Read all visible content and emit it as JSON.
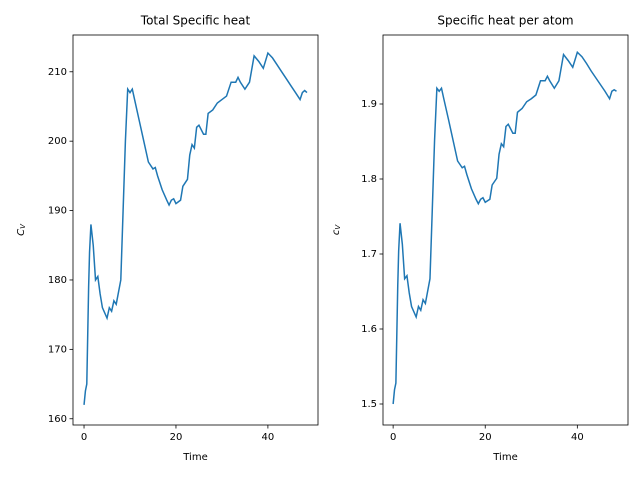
{
  "chart_data": [
    {
      "type": "line",
      "title": "Total Specific heat",
      "xlabel": "Time",
      "ylabel": "C",
      "ylabel_sub": "V",
      "xlim": [
        -2.4,
        50.9
      ],
      "ylim": [
        159.1,
        215.3
      ],
      "xticks": [
        0,
        20,
        40
      ],
      "yticks": [
        160,
        170,
        180,
        190,
        200,
        210
      ],
      "x": [
        0,
        0.3,
        0.6,
        1,
        1.2,
        1.5,
        2,
        2.5,
        3,
        3.5,
        4,
        5,
        5.5,
        6,
        6.5,
        7,
        8,
        8.5,
        9,
        9.5,
        10,
        10.5,
        11,
        12,
        13,
        14,
        15,
        15.5,
        16,
        17,
        18,
        18.5,
        19,
        19.5,
        20,
        21,
        21.5,
        22.5,
        23,
        23.5,
        24,
        24.5,
        25,
        26,
        26.5,
        27,
        28,
        29,
        30,
        31,
        32,
        33,
        33.5,
        34,
        35,
        36,
        37,
        38,
        39,
        40,
        41,
        42,
        43,
        44,
        45,
        46,
        47,
        47.5,
        48,
        48.5
      ],
      "series": [
        {
          "color": "#1f77b4",
          "values": [
            162,
            164,
            165,
            179,
            184,
            188,
            185,
            180,
            180.5,
            178,
            176,
            174.5,
            176,
            175.5,
            177,
            176.5,
            180,
            190,
            200,
            207.5,
            207,
            207.5,
            206,
            203,
            200,
            197,
            196,
            196.2,
            195,
            193,
            191.5,
            190.8,
            191.5,
            191.7,
            191,
            191.5,
            193.5,
            194.5,
            198,
            199.5,
            199,
            202,
            202.3,
            201,
            201,
            204,
            204.5,
            205.5,
            206,
            206.5,
            208.5,
            208.5,
            209.2,
            208.5,
            207.5,
            208.5,
            212.3,
            211.5,
            210.5,
            212.7,
            212,
            211,
            210,
            209,
            208,
            207,
            206,
            207,
            207.3,
            207
          ]
        }
      ]
    },
    {
      "type": "line",
      "title": "Specific heat per atom",
      "xlabel": "Time",
      "ylabel": "c",
      "ylabel_sub": "V",
      "xlim": [
        -2.2,
        51
      ],
      "ylim": [
        1.472,
        1.992
      ],
      "xticks": [
        0,
        20,
        40
      ],
      "yticks": [
        1.5,
        1.6,
        1.7,
        1.8,
        1.9
      ],
      "x": [
        0,
        0.3,
        0.6,
        1,
        1.2,
        1.5,
        2,
        2.5,
        3,
        3.5,
        4,
        5,
        5.5,
        6,
        6.5,
        7,
        8,
        8.5,
        9,
        9.5,
        10,
        10.5,
        11,
        12,
        13,
        14,
        15,
        15.5,
        16,
        17,
        18,
        18.5,
        19,
        19.5,
        20,
        21,
        21.5,
        22.5,
        23,
        23.5,
        24,
        24.5,
        25,
        26,
        26.5,
        27,
        28,
        29,
        30,
        31,
        32,
        33,
        33.5,
        34,
        35,
        36,
        37,
        38,
        39,
        40,
        41,
        42,
        43,
        44,
        45,
        46,
        47,
        47.5,
        48,
        48.5
      ],
      "series": [
        {
          "color": "#1f77b4",
          "values": [
            1.5,
            1.519,
            1.528,
            1.657,
            1.704,
            1.741,
            1.713,
            1.667,
            1.671,
            1.648,
            1.63,
            1.616,
            1.63,
            1.625,
            1.639,
            1.634,
            1.667,
            1.759,
            1.852,
            1.921,
            1.917,
            1.921,
            1.907,
            1.88,
            1.852,
            1.824,
            1.815,
            1.817,
            1.806,
            1.787,
            1.773,
            1.767,
            1.773,
            1.775,
            1.769,
            1.773,
            1.792,
            1.801,
            1.833,
            1.847,
            1.843,
            1.87,
            1.873,
            1.861,
            1.861,
            1.889,
            1.894,
            1.903,
            1.907,
            1.912,
            1.931,
            1.931,
            1.937,
            1.931,
            1.921,
            1.931,
            1.966,
            1.958,
            1.949,
            1.969,
            1.963,
            1.954,
            1.944,
            1.935,
            1.926,
            1.917,
            1.907,
            1.917,
            1.919,
            1.917
          ]
        }
      ]
    }
  ]
}
